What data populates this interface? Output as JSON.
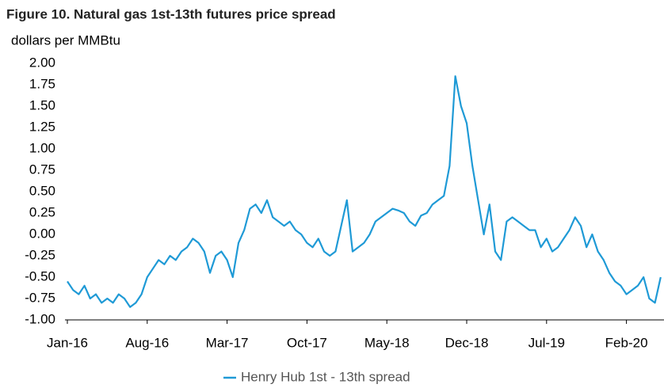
{
  "chart_data": {
    "type": "line",
    "title": "Figure 10. Natural gas 1st-13th futures price spread",
    "y_label": "dollars per MMBtu",
    "categories": [
      "Jan-16",
      null,
      null,
      null,
      null,
      null,
      null,
      null,
      null,
      null,
      null,
      null,
      null,
      null,
      "Aug-16",
      null,
      null,
      null,
      null,
      null,
      null,
      null,
      null,
      null,
      null,
      null,
      null,
      null,
      "Mar-17",
      null,
      null,
      null,
      null,
      null,
      null,
      null,
      null,
      null,
      null,
      null,
      null,
      null,
      "Oct-17",
      null,
      null,
      null,
      null,
      null,
      null,
      null,
      null,
      null,
      null,
      null,
      null,
      null,
      "May-18",
      null,
      null,
      null,
      null,
      null,
      null,
      null,
      null,
      null,
      null,
      null,
      null,
      null,
      "Dec-18",
      null,
      null,
      null,
      null,
      null,
      null,
      null,
      null,
      null,
      null,
      null,
      null,
      null,
      "Jul-19",
      null,
      null,
      null,
      null,
      null,
      null,
      null,
      null,
      null,
      null,
      null,
      null,
      null,
      "Feb-20",
      null,
      null,
      null,
      null,
      null,
      null
    ],
    "series": [
      {
        "name": "Henry Hub 1st - 13th spread",
        "color": "#1f9ad6",
        "values": [
          -0.55,
          -0.65,
          -0.7,
          -0.6,
          -0.75,
          -0.7,
          -0.8,
          -0.75,
          -0.8,
          -0.7,
          -0.75,
          -0.85,
          -0.8,
          -0.7,
          -0.5,
          -0.4,
          -0.3,
          -0.35,
          -0.25,
          -0.3,
          -0.2,
          -0.15,
          -0.05,
          -0.1,
          -0.2,
          -0.45,
          -0.25,
          -0.2,
          -0.3,
          -0.5,
          -0.1,
          0.05,
          0.3,
          0.35,
          0.25,
          0.4,
          0.2,
          0.15,
          0.1,
          0.15,
          0.05,
          0.0,
          -0.1,
          -0.15,
          -0.05,
          -0.2,
          -0.25,
          -0.2,
          0.1,
          0.4,
          -0.2,
          -0.15,
          -0.1,
          0.0,
          0.15,
          0.2,
          0.25,
          0.3,
          0.28,
          0.25,
          0.15,
          0.1,
          0.22,
          0.25,
          0.35,
          0.4,
          0.45,
          0.8,
          1.85,
          1.5,
          1.3,
          0.8,
          0.4,
          0.0,
          0.35,
          -0.2,
          -0.3,
          0.15,
          0.2,
          0.15,
          0.1,
          0.05,
          0.05,
          -0.15,
          -0.05,
          -0.2,
          -0.15,
          -0.05,
          0.05,
          0.2,
          0.1,
          -0.15,
          0.0,
          -0.2,
          -0.3,
          -0.45,
          -0.55,
          -0.6,
          -0.7,
          -0.65,
          -0.6,
          -0.5,
          -0.75,
          -0.8,
          -0.5
        ]
      }
    ],
    "ylim": [
      -1,
      2
    ],
    "yticks": [
      {
        "value": -1,
        "label": "-1.00"
      },
      {
        "value": -0.75,
        "label": "-0.75"
      },
      {
        "value": -0.5,
        "label": "-0.50"
      },
      {
        "value": -0.25,
        "label": "-0.25"
      },
      {
        "value": 0,
        "label": "0.00"
      },
      {
        "value": 0.25,
        "label": "0.25"
      },
      {
        "value": 0.5,
        "label": "0.50"
      },
      {
        "value": 0.75,
        "label": "0.75"
      },
      {
        "value": 1,
        "label": "1.00"
      },
      {
        "value": 1.25,
        "label": "1.25"
      },
      {
        "value": 1.5,
        "label": "1.50"
      },
      {
        "value": 1.75,
        "label": "1.75"
      },
      {
        "value": 2,
        "label": "2.00"
      }
    ],
    "grid": false,
    "legend": "bottom"
  }
}
